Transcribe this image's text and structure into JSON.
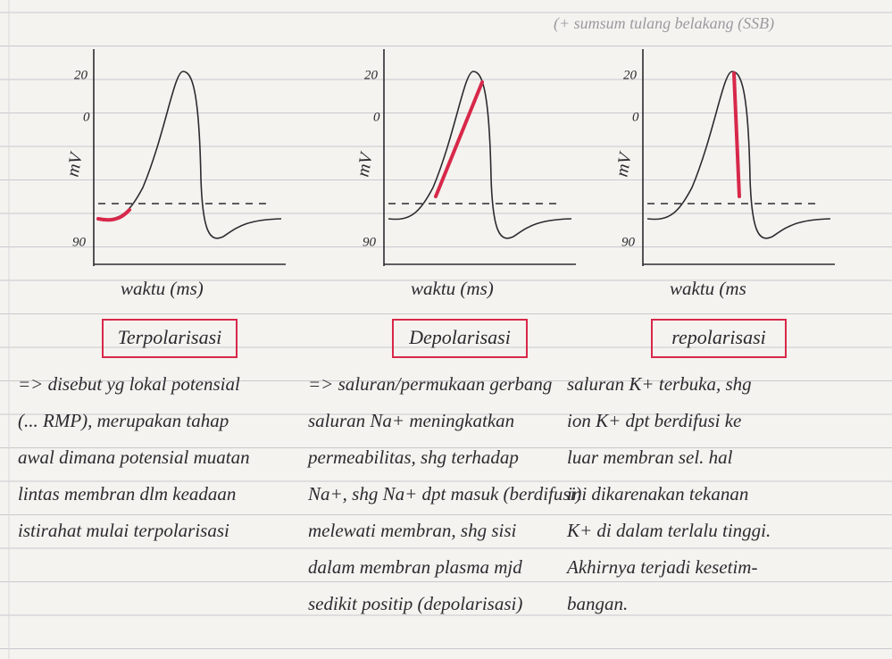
{
  "header": {
    "note": "(+ sumsum tulang belakang (SSB)"
  },
  "panels": [
    {
      "y_top": "20",
      "y_zero": "0",
      "y_label": "mV",
      "y_bottom": "90",
      "x_label": "waktu (ms)",
      "title": "Terpolarisasi",
      "lines": [
        "=> disebut yg lokal potensial",
        "(... RMP), merupakan tahap",
        "awal dimana potensial muatan",
        "lintas membran dlm keadaan",
        "istirahat mulai terpolarisasi"
      ]
    },
    {
      "y_top": "20",
      "y_zero": "0",
      "y_label": "mV",
      "y_bottom": "90",
      "x_label": "waktu (ms)",
      "title": "Depolarisasi",
      "lines": [
        "=> saluran/permukaan gerbang",
        "saluran Na+ meningkatkan",
        "permeabilitas, shg terhadap",
        "Na+, shg Na+ dpt masuk (berdifusi)",
        "melewati membran, shg sisi",
        "dalam membran plasma mjd",
        "sedikit positip (depolarisasi)"
      ]
    },
    {
      "y_top": "20",
      "y_zero": "0",
      "y_label": "mV",
      "y_bottom": "90",
      "x_label": "waktu (ms",
      "title": "repolarisasi",
      "lines": [
        "saluran K+ terbuka, shg",
        "ion K+ dpt berdifusi ke",
        "luar membran sel. hal",
        "ini dikarenakan tekanan",
        "K+ di dalam terlalu tinggi.",
        "Akhirnya terjadi kesetim-",
        "bangan."
      ]
    }
  ]
}
